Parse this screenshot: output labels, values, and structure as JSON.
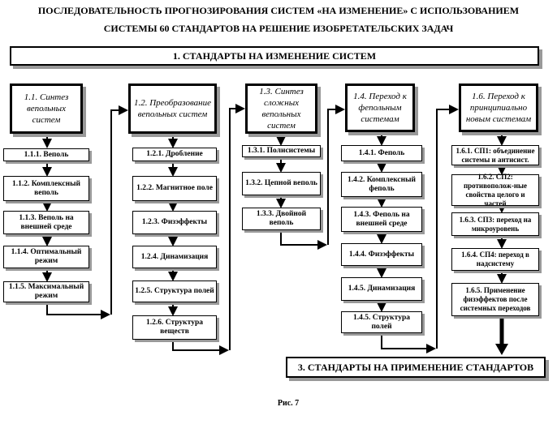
{
  "title_line1": "ПОСЛЕДОВАТЕЛЬНОСТЬ ПРОГНОЗИРОВАНИЯ СИСТЕМ «НА ИЗМЕНЕНИЕ» С ИСПОЛЬЗОВАНИЕМ",
  "title_line2": "СИСТЕМЫ 60 СТАНДАРТОВ НА РЕШЕНИЕ ИЗОБРЕТАТЕЛЬСКИХ ЗАДАЧ",
  "top_banner": "1. СТАНДАРТЫ НА ИЗМЕНЕНИЕ СИСТЕМ",
  "bottom_banner": "3. СТАНДАРТЫ НА ПРИМЕНЕНИЕ СТАНДАРТОВ",
  "caption": "Рис. 7",
  "columns": [
    {
      "header": "1.1. Синтез вепольных систем",
      "items": [
        "1.1.1. Веполь",
        "1.1.2. Комплексный веполь",
        "1.1.3. Веполь на внешней среде",
        "1.1.4. Оптимальный режим",
        "1.1.5. Максимальный режим"
      ]
    },
    {
      "header": "1.2. Преобразование вепольных систем",
      "items": [
        "1.2.1. Дробление",
        "1.2.2. Магнитное поле",
        "1.2.3. Физэффекты",
        "1.2.4. Динамизация",
        "1.2.5. Структура полей",
        "1.2.6. Структура веществ"
      ]
    },
    {
      "header": "1.3. Синтез сложных вепольных систем",
      "items": [
        "1.3.1. Полисистемы",
        "1.3.2. Цепной веполь",
        "1.3.3. Двойной веполь"
      ]
    },
    {
      "header": "1.4. Переход к фепольным системам",
      "items": [
        "1.4.1. Феполь",
        "1.4.2. Комплексный феполь",
        "1.4.3. Феполь на внешней среде",
        "1.4.4. Физэффекты",
        "1.4.5. Динамизация",
        "1.4.5. Структура полей"
      ]
    },
    {
      "header": "1.6. Переход к принципиально новым системам",
      "items": [
        "1.6.1. СП1: объединение системы и антисист.",
        "1.6.2. СП2: противополож-ные свойства целого и частей",
        "1.6.3. СП3: переход на микроуровень",
        "1.6.4. СП4: переход в надсистему",
        "1.6.5. Применение физэффектов после системных переходов"
      ]
    }
  ]
}
